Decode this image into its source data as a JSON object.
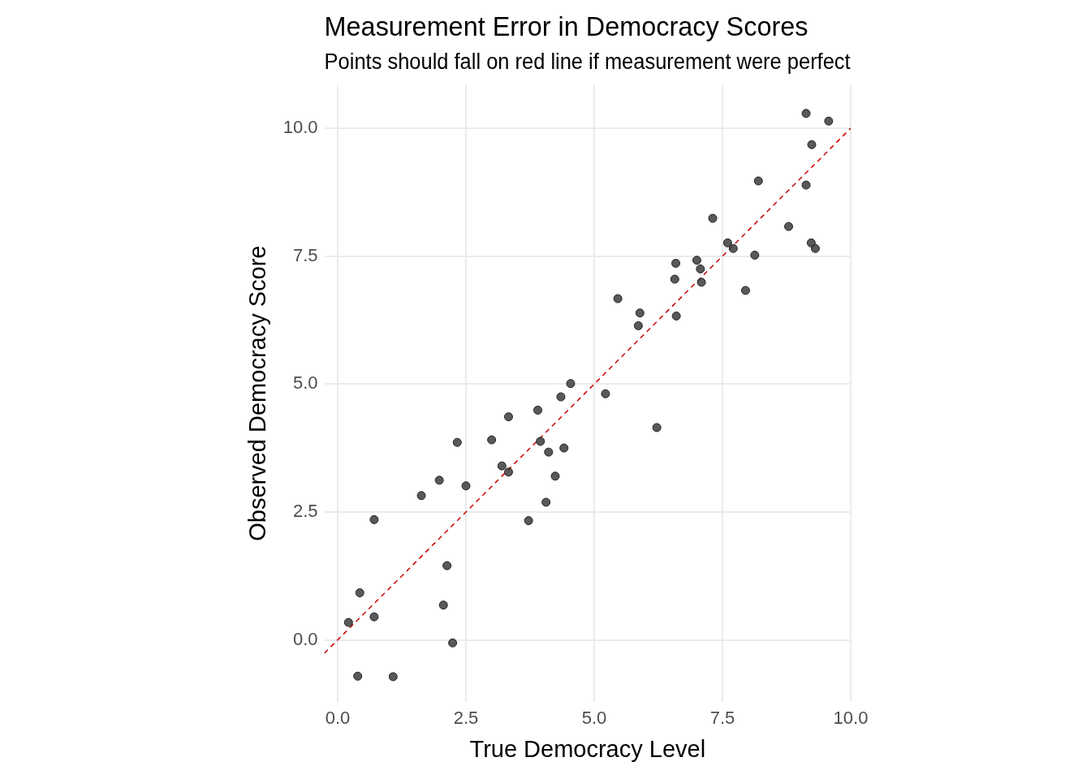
{
  "chart_data": {
    "type": "scatter",
    "title": "Measurement Error in Democracy Scores",
    "subtitle": "Points should fall on red line if measurement were perfect",
    "xlabel": "True Democracy Level",
    "ylabel": "Observed Democracy Score",
    "xlim": [
      -0.26,
      10
    ],
    "ylim": [
      -1.21,
      10.85
    ],
    "xticks": [
      {
        "value": 0,
        "label": "0.0"
      },
      2.5,
      {
        "value": 5,
        "label": "5.0"
      },
      7.5,
      {
        "value": 10,
        "label": "10.0"
      }
    ],
    "yticks": [
      {
        "value": 0,
        "label": "0.0"
      },
      2.5,
      {
        "value": 5,
        "label": "5.0"
      },
      7.5,
      {
        "value": 10,
        "label": "10.0"
      }
    ],
    "grid": true,
    "legend": false,
    "series": [
      {
        "type": "scatter",
        "color": "#404040",
        "marker": "circle",
        "x": [
          0.21,
          0.43,
          0.39,
          0.71,
          0.71,
          1.08,
          1.63,
          1.98,
          2.06,
          2.13,
          2.24,
          2.33,
          2.5,
          3.0,
          3.2,
          3.33,
          3.33,
          3.72,
          3.9,
          3.95,
          4.06,
          4.11,
          4.24,
          4.35,
          4.41,
          4.54,
          5.22,
          5.46,
          5.86,
          5.89,
          6.22,
          6.57,
          6.59,
          6.6,
          7.0,
          7.07,
          7.09,
          7.31,
          7.6,
          7.71,
          7.95,
          8.13,
          8.2,
          8.79,
          9.13,
          9.13,
          9.24,
          9.23,
          9.31,
          9.57
        ],
        "values": [
          0.34,
          0.92,
          -0.71,
          2.35,
          0.45,
          -0.72,
          2.82,
          3.12,
          0.68,
          1.45,
          -0.06,
          3.86,
          3.01,
          3.91,
          3.4,
          3.28,
          4.36,
          2.33,
          4.49,
          3.88,
          2.69,
          3.67,
          3.2,
          4.75,
          3.75,
          5.01,
          4.81,
          6.67,
          6.14,
          6.39,
          4.15,
          7.05,
          7.36,
          6.33,
          7.42,
          7.25,
          6.99,
          8.24,
          7.76,
          7.65,
          6.83,
          7.52,
          8.97,
          8.08,
          10.29,
          8.89,
          9.68,
          7.76,
          7.65,
          10.14
        ]
      },
      {
        "type": "line",
        "color": "#cc0000",
        "line_style": "dashed",
        "marker": "none",
        "x": [
          -0.26,
          10
        ],
        "values": [
          -0.26,
          10
        ]
      }
    ]
  }
}
